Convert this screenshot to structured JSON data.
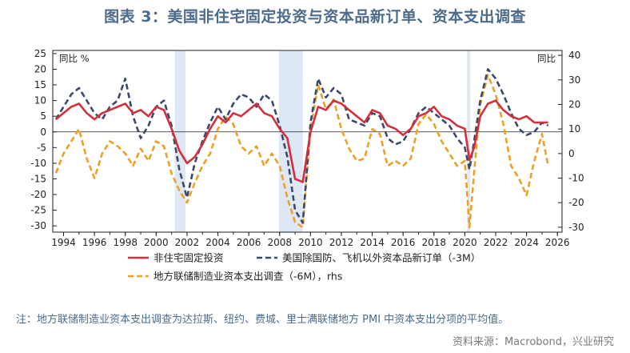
{
  "title": "图表 3：美国非住宅固定投资与资本品新订单、资本支出调查",
  "note": "注：地方联储制造业资本支出调查为达拉斯、纽约、费城、里士满联储地方 PMI 中资本支出分项的平均值。",
  "source": "资料来源：Macrobond，兴业研究",
  "colors": {
    "red": "#d42f3c",
    "navy": "#3b4a6b",
    "orange": "#eea026",
    "recession": "#dde8f4",
    "axis": "#222222"
  },
  "chart_data": {
    "type": "line",
    "left_axis": {
      "label": "同比 %",
      "ylim": [
        -32,
        26
      ],
      "ticks": [
        25,
        20,
        15,
        10,
        5,
        0,
        -5,
        -10,
        -15,
        -20,
        -25,
        -30
      ]
    },
    "right_axis": {
      "label": "同比",
      "ylim": [
        -32,
        42
      ],
      "ticks": [
        40,
        30,
        20,
        10,
        0,
        -10,
        -20,
        -30
      ]
    },
    "x_axis": {
      "xlim": [
        1993.3,
        2026.3
      ],
      "ticks": [
        "1994",
        "1996",
        "1998",
        "2000",
        "2002",
        "2004",
        "2006",
        "2008",
        "2010",
        "2012",
        "2014",
        "2016",
        "2018",
        "2020",
        "2022",
        "2024",
        "2026"
      ]
    },
    "recessions": [
      [
        2001.2,
        2001.9
      ],
      [
        2007.95,
        2009.5
      ],
      [
        2020.15,
        2020.35
      ]
    ],
    "series": [
      {
        "name": "非住宅固定投资",
        "axis": "left",
        "style": "solid",
        "color": "#d42f3c",
        "x": [
          1993.5,
          1994,
          1994.5,
          1995,
          1995.5,
          1996,
          1996.5,
          1997,
          1997.5,
          1998,
          1998.5,
          1999,
          1999.5,
          2000,
          2000.5,
          2001,
          2001.5,
          2002,
          2002.5,
          2003,
          2003.5,
          2004,
          2004.5,
          2005,
          2005.5,
          2006,
          2006.5,
          2007,
          2007.5,
          2008,
          2008.5,
          2009,
          2009.5,
          2010,
          2010.5,
          2011,
          2011.5,
          2012,
          2012.5,
          2013,
          2013.5,
          2014,
          2014.5,
          2015,
          2015.5,
          2016,
          2016.5,
          2017,
          2017.5,
          2018,
          2018.5,
          2019,
          2019.5,
          2020,
          2020.3,
          2020.6,
          2021,
          2021.5,
          2022,
          2022.5,
          2023,
          2023.5,
          2024,
          2024.5,
          2025,
          2025.4
        ],
        "y": [
          4,
          6,
          8,
          9,
          6,
          4,
          6,
          7,
          8,
          9,
          6,
          7,
          5,
          8,
          7,
          1,
          -6,
          -10,
          -8,
          -4,
          1,
          5,
          3,
          6,
          5,
          7,
          9,
          6,
          5,
          1,
          -2,
          -15,
          -16,
          0,
          8,
          7,
          10,
          9,
          7,
          5,
          3,
          7,
          6,
          2,
          1,
          -1,
          1,
          5,
          6,
          8,
          5,
          4,
          2,
          1,
          -9,
          -5,
          5,
          9,
          10,
          7,
          5,
          4,
          5,
          3,
          3,
          3
        ]
      },
      {
        "name": "美国除国防、飞机以外资本品新订单（-3M）",
        "axis": "left",
        "style": "dashed",
        "color": "#3b4a6b",
        "x": [
          1993.5,
          1994,
          1994.5,
          1995,
          1995.5,
          1996,
          1996.5,
          1997,
          1997.5,
          1998,
          1998.5,
          1999,
          1999.5,
          2000,
          2000.5,
          2001,
          2001.5,
          2002,
          2002.5,
          2003,
          2003.5,
          2004,
          2004.5,
          2005,
          2005.5,
          2006,
          2006.5,
          2007,
          2007.5,
          2008,
          2008.5,
          2009,
          2009.5,
          2010,
          2010.5,
          2011,
          2011.5,
          2012,
          2012.5,
          2013,
          2013.5,
          2014,
          2014.5,
          2015,
          2015.5,
          2016,
          2016.5,
          2017,
          2017.5,
          2018,
          2018.5,
          2019,
          2019.5,
          2020,
          2020.3,
          2020.6,
          2021,
          2021.5,
          2022,
          2022.5,
          2023,
          2023.5,
          2024,
          2024.5,
          2025,
          2025.4
        ],
        "y": [
          4,
          8,
          12,
          14,
          10,
          6,
          4,
          8,
          10,
          17,
          5,
          -2,
          2,
          8,
          10,
          2,
          -12,
          -21,
          -10,
          -3,
          3,
          8,
          4,
          9,
          12,
          11,
          8,
          12,
          10,
          2,
          -8,
          -25,
          -29,
          3,
          17,
          11,
          14,
          12,
          4,
          3,
          2,
          6,
          5,
          -2,
          -4,
          -3,
          1,
          6,
          8,
          6,
          4,
          2,
          -2,
          -5,
          -12,
          -3,
          10,
          20,
          17,
          12,
          6,
          1,
          -1,
          0,
          3,
          2
        ]
      },
      {
        "name": "地方联储制造业资本支出调查（-6M），rhs",
        "axis": "right",
        "style": "dashed",
        "color": "#eea026",
        "x": [
          1993.5,
          1994,
          1994.5,
          1995,
          1995.5,
          1996,
          1996.5,
          1997,
          1997.5,
          1998,
          1998.5,
          1999,
          1999.5,
          2000,
          2000.5,
          2001,
          2001.5,
          2002,
          2002.5,
          2003,
          2003.5,
          2004,
          2004.5,
          2005,
          2005.5,
          2006,
          2006.5,
          2007,
          2007.5,
          2008,
          2008.5,
          2009,
          2009.5,
          2010,
          2010.5,
          2011,
          2011.5,
          2012,
          2012.5,
          2013,
          2013.5,
          2014,
          2014.5,
          2015,
          2015.5,
          2016,
          2016.5,
          2017,
          2017.5,
          2018,
          2018.5,
          2019,
          2019.5,
          2020,
          2020.3,
          2020.6,
          2021,
          2021.5,
          2022,
          2022.5,
          2023,
          2023.5,
          2024,
          2024.5,
          2025,
          2025.4
        ],
        "y": [
          -8,
          0,
          5,
          10,
          -2,
          -10,
          0,
          5,
          3,
          0,
          -5,
          2,
          -3,
          5,
          3,
          -8,
          -15,
          -20,
          -12,
          -5,
          0,
          10,
          15,
          12,
          3,
          0,
          3,
          -5,
          0,
          -5,
          -18,
          -28,
          -30,
          10,
          28,
          18,
          22,
          10,
          2,
          -3,
          -2,
          10,
          8,
          -5,
          -3,
          -5,
          -2,
          12,
          16,
          12,
          5,
          0,
          -5,
          -3,
          -30,
          -8,
          20,
          32,
          24,
          12,
          -5,
          -10,
          -17,
          -3,
          8,
          -5
        ]
      }
    ]
  }
}
